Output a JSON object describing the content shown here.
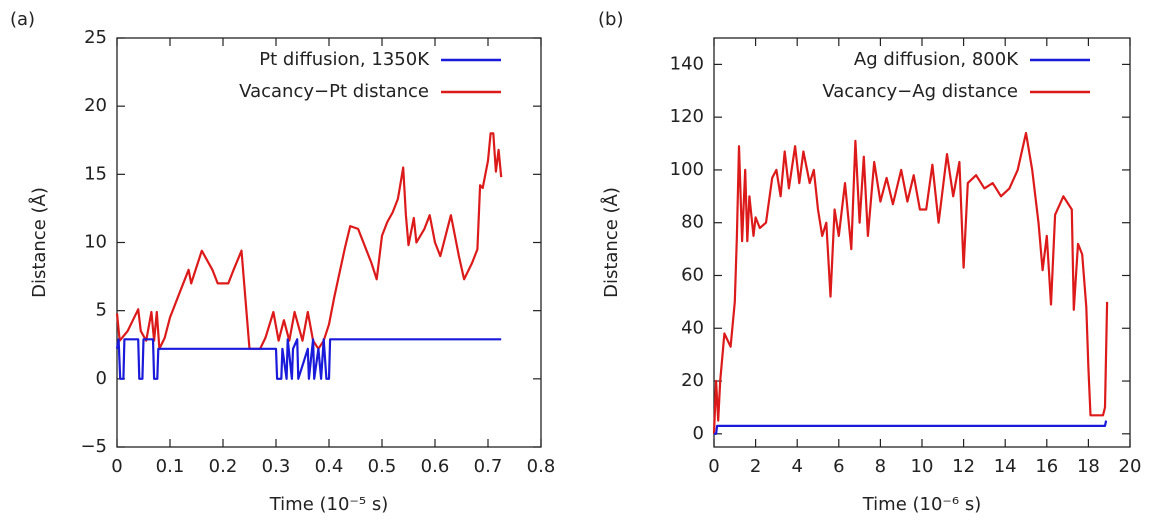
{
  "chart_data": [
    {
      "type": "line",
      "panel_label": "(a)",
      "xlabel": "Time (10⁻⁵ s)",
      "ylabel": "Distance (Å)",
      "xlim": [
        0,
        0.8
      ],
      "ylim": [
        -5,
        25
      ],
      "xticks": [
        0,
        0.1,
        0.2,
        0.3,
        0.4,
        0.5,
        0.6,
        0.7,
        0.8
      ],
      "yticks": [
        {
          "value": -5,
          "label": "−5"
        },
        0,
        5,
        10,
        15,
        20,
        25
      ],
      "legend": "upper right",
      "series": [
        {
          "name": "Pt diffusion, 1350K",
          "color": "#1a1adb",
          "x": [
            0,
            0.003,
            0.006,
            0.012,
            0.014,
            0.04,
            0.042,
            0.048,
            0.05,
            0.068,
            0.07,
            0.076,
            0.078,
            0.08,
            0.3,
            0.302,
            0.31,
            0.312,
            0.32,
            0.322,
            0.33,
            0.332,
            0.34,
            0.342,
            0.36,
            0.362,
            0.37,
            0.372,
            0.38,
            0.385,
            0.39,
            0.395,
            0.4,
            0.402,
            0.725
          ],
          "values": [
            2.2,
            2.9,
            0,
            0,
            2.9,
            2.9,
            0,
            0,
            2.9,
            2.9,
            0,
            0,
            2.2,
            2.2,
            2.2,
            0,
            0,
            2.2,
            0,
            2.9,
            0,
            2.2,
            2.9,
            0,
            2.2,
            0,
            2.9,
            0,
            2.2,
            0,
            2.9,
            0,
            0,
            2.9,
            2.9
          ]
        },
        {
          "name": "Vacancy−Pt distance",
          "color": "#dd1a1a",
          "x": [
            0,
            0.005,
            0.02,
            0.03,
            0.04,
            0.045,
            0.055,
            0.065,
            0.07,
            0.075,
            0.08,
            0.09,
            0.1,
            0.12,
            0.135,
            0.14,
            0.16,
            0.18,
            0.19,
            0.2,
            0.21,
            0.22,
            0.235,
            0.25,
            0.26,
            0.27,
            0.28,
            0.295,
            0.305,
            0.315,
            0.325,
            0.335,
            0.35,
            0.36,
            0.37,
            0.38,
            0.39,
            0.4,
            0.41,
            0.42,
            0.43,
            0.44,
            0.455,
            0.47,
            0.48,
            0.49,
            0.5,
            0.51,
            0.52,
            0.53,
            0.54,
            0.545,
            0.55,
            0.56,
            0.565,
            0.58,
            0.59,
            0.6,
            0.61,
            0.62,
            0.63,
            0.645,
            0.655,
            0.67,
            0.68,
            0.685,
            0.69,
            0.7,
            0.705,
            0.71,
            0.715,
            0.72,
            0.725
          ],
          "values": [
            4.8,
            2.8,
            3.5,
            4.3,
            5.1,
            3.5,
            2.8,
            4.9,
            2.8,
            4.9,
            2.2,
            3,
            4.5,
            6.5,
            8,
            7,
            9.4,
            8,
            7,
            7,
            7,
            8,
            9.4,
            2.2,
            2.2,
            2.2,
            3,
            4.9,
            2.8,
            4.3,
            2.8,
            4.9,
            2.8,
            4.9,
            2.8,
            2.2,
            2.8,
            4,
            6,
            7.8,
            9.6,
            11.2,
            11,
            9.5,
            8.5,
            7.3,
            10.5,
            11.5,
            12.2,
            13.2,
            15.5,
            12,
            9.8,
            11.8,
            10,
            11,
            12,
            10,
            9,
            10.5,
            12,
            9,
            7.3,
            8.5,
            9.5,
            14.2,
            14,
            16,
            18,
            18,
            15.2,
            16.8,
            14.8
          ]
        }
      ]
    },
    {
      "type": "line",
      "panel_label": "(b)",
      "xlabel": "Time (10⁻⁶ s)",
      "ylabel": "Distance (Å)",
      "xlim": [
        0,
        20
      ],
      "ylim": [
        -5,
        150
      ],
      "xticks": [
        0,
        2,
        4,
        6,
        8,
        10,
        12,
        14,
        16,
        18,
        20
      ],
      "yticks": [
        0,
        20,
        40,
        60,
        80,
        100,
        120,
        140
      ],
      "legend": "upper right",
      "series": [
        {
          "name": "Ag diffusion, 800K",
          "color": "#1a1adb",
          "x": [
            0,
            0.1,
            0.15,
            18.8,
            18.85
          ],
          "values": [
            0,
            0,
            3,
            3,
            5
          ]
        },
        {
          "name": "Vacancy−Ag distance",
          "color": "#dd1a1a",
          "x": [
            0,
            0.1,
            0.2,
            0.3,
            0.5,
            0.8,
            1,
            1.1,
            1.2,
            1.35,
            1.5,
            1.6,
            1.7,
            1.9,
            2,
            2.2,
            2.5,
            2.8,
            3,
            3.2,
            3.4,
            3.6,
            3.9,
            4.1,
            4.3,
            4.6,
            4.8,
            5,
            5.2,
            5.4,
            5.6,
            5.8,
            6,
            6.3,
            6.6,
            6.8,
            7,
            7.2,
            7.4,
            7.7,
            8,
            8.3,
            8.6,
            9,
            9.3,
            9.6,
            9.9,
            10.2,
            10.5,
            10.8,
            11.2,
            11.5,
            11.8,
            12,
            12.2,
            12.6,
            13,
            13.4,
            13.8,
            14.2,
            14.6,
            15,
            15.3,
            15.6,
            15.8,
            16,
            16.2,
            16.4,
            16.8,
            17.2,
            17.3,
            17.5,
            17.7,
            17.9,
            18,
            18.1,
            18.5,
            18.7,
            18.8,
            18.9
          ],
          "values": [
            0,
            20,
            5,
            20,
            38,
            33,
            50,
            75,
            109,
            73,
            100,
            73,
            90,
            75,
            82,
            78,
            80,
            97,
            100,
            90,
            107,
            93,
            109,
            95,
            107,
            95,
            100,
            85,
            75,
            80,
            52,
            85,
            75,
            95,
            70,
            111,
            80,
            105,
            75,
            103,
            88,
            97,
            87,
            100,
            88,
            98,
            85,
            85,
            102,
            80,
            106,
            90,
            103,
            63,
            95,
            98,
            93,
            95,
            90,
            93,
            100,
            114,
            100,
            80,
            62,
            75,
            49,
            83,
            90,
            85,
            47,
            72,
            68,
            48,
            25,
            7,
            7,
            7,
            10,
            50
          ]
        }
      ]
    }
  ]
}
